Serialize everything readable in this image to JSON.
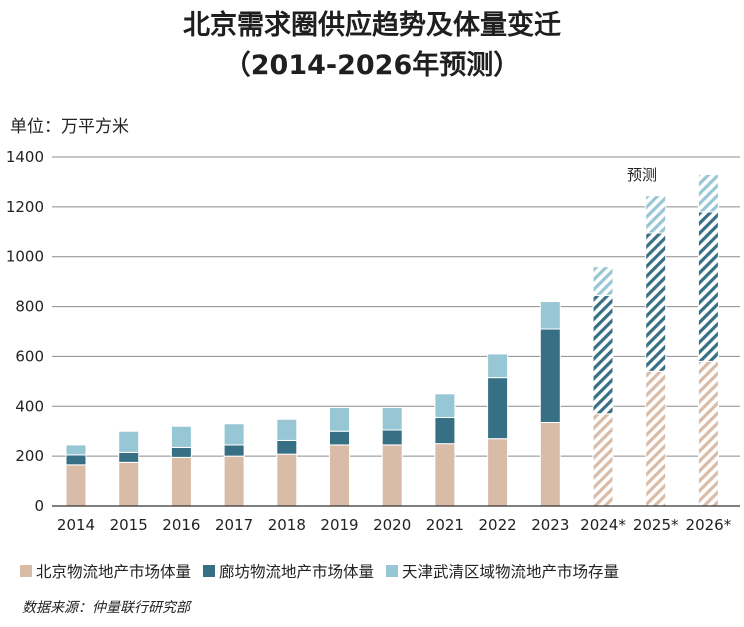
{
  "title_line1": "北京需求圈供应趋势及体量变迁",
  "title_line2": "（2014-2026年预测）",
  "unit_label": "单位：万平方米",
  "forecast_label": "预测",
  "source": "数据来源：仲量联行研究部",
  "colors": {
    "beijing": "#d9bca8",
    "langfang": "#376f84",
    "tianjin": "#97c6d4",
    "grid": "#8c8c8c",
    "axis": "#333333"
  },
  "chart_data": {
    "type": "bar",
    "stacked": true,
    "categories": [
      "2014",
      "2015",
      "2016",
      "2017",
      "2018",
      "2019",
      "2020",
      "2021",
      "2022",
      "2023",
      "2024*",
      "2025*",
      "2026*"
    ],
    "forecast_categories": [
      "2024*",
      "2025*",
      "2026*"
    ],
    "series": [
      {
        "key": "beijing",
        "name": "北京物流地产市场体量",
        "values": [
          165,
          175,
          195,
          200,
          208,
          245,
          245,
          250,
          270,
          335,
          370,
          540,
          580
        ]
      },
      {
        "key": "langfang",
        "name": "廊坊物流地产市场体量",
        "values": [
          40,
          40,
          40,
          45,
          55,
          55,
          60,
          105,
          245,
          375,
          475,
          555,
          600
        ]
      },
      {
        "key": "tianjin",
        "name": "天津武清区域物流地产市场存量",
        "values": [
          40,
          85,
          85,
          85,
          85,
          95,
          90,
          95,
          95,
          110,
          115,
          150,
          150
        ]
      }
    ],
    "ylim": [
      0,
      1400
    ],
    "yticks": [
      0,
      200,
      400,
      600,
      800,
      1000,
      1200,
      1400
    ],
    "grid": true,
    "legend_position": "bottom"
  }
}
